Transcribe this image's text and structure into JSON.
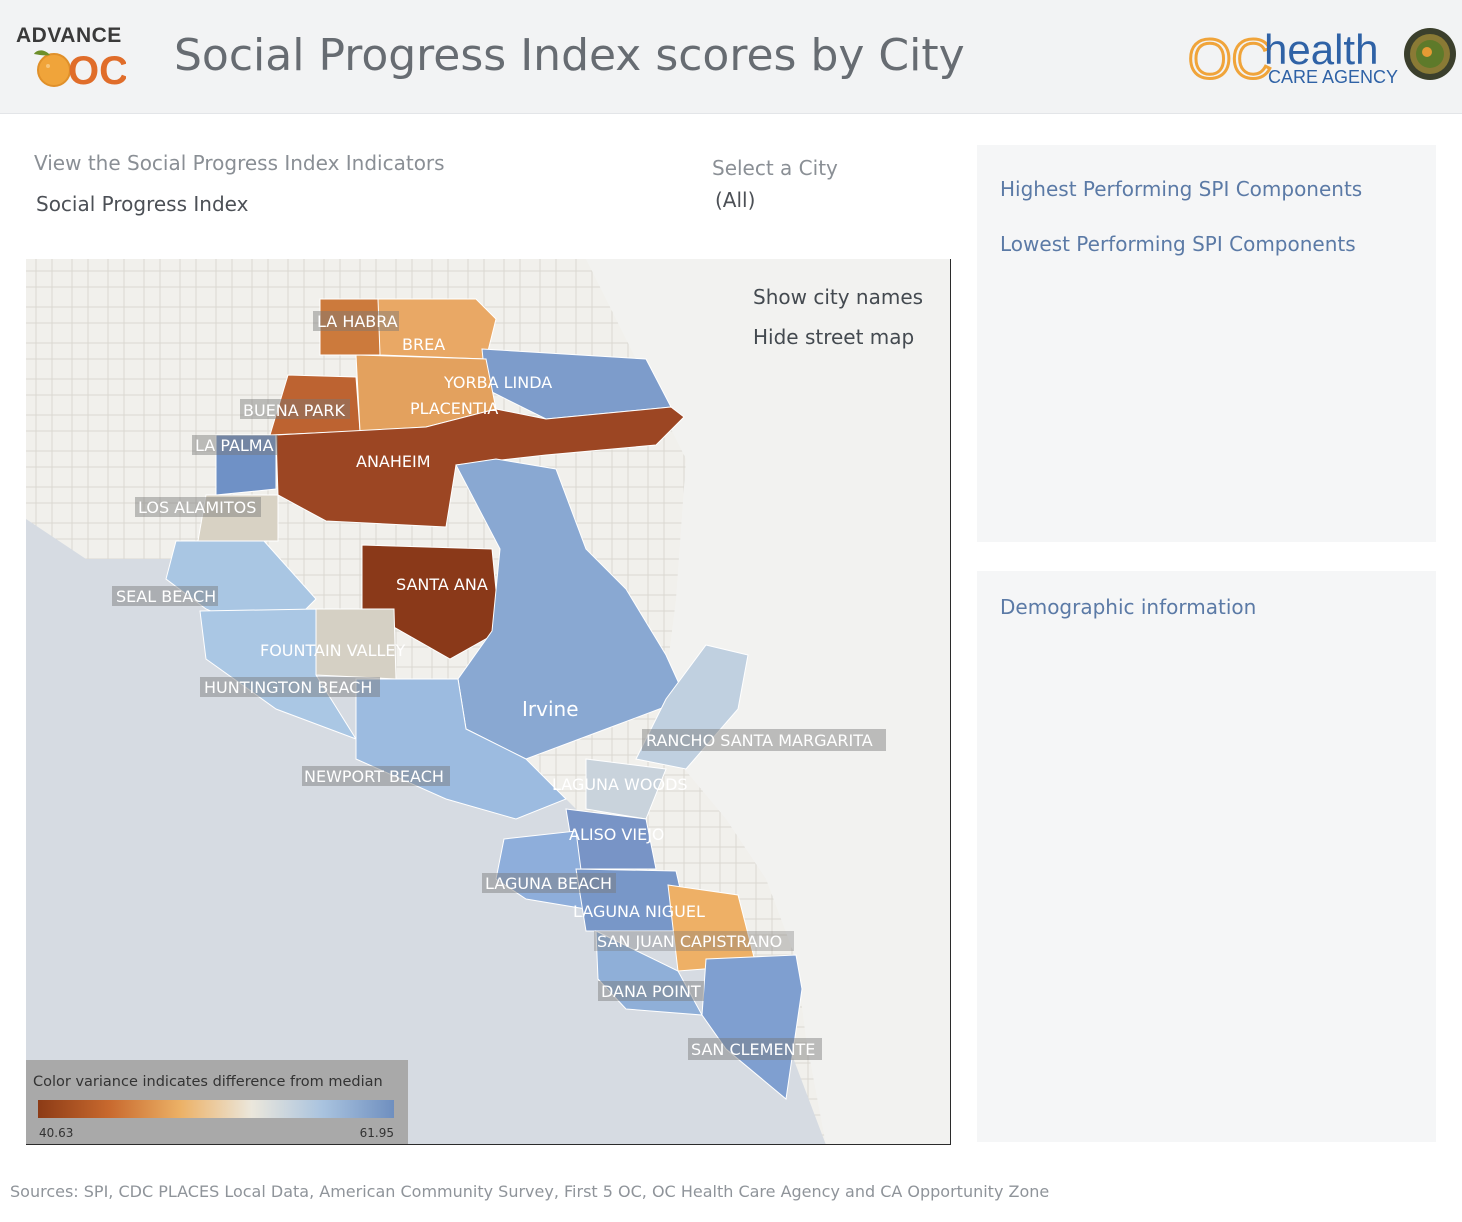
{
  "header": {
    "logo_left_text": "ADVANCE",
    "logo_left_mark": "OC",
    "title": "Social Progress Index scores by City",
    "logo_right_mark": "OC",
    "logo_right_word": "health",
    "logo_right_sub": "CARE AGENCY"
  },
  "filters": {
    "indicator_label": "View the Social Progress Index Indicators",
    "indicator_value": "Social Progress Index",
    "city_label": "Select a City",
    "city_value": "(All)"
  },
  "map": {
    "toggles": {
      "show_city_names": "Show city names",
      "hide_street_map": "Hide street map"
    },
    "cities": [
      {
        "name": "LA HABRA",
        "color": "#cc7a3c"
      },
      {
        "name": "BREA",
        "color": "#e9a865"
      },
      {
        "name": "YORBA LINDA",
        "color": "#7d9ccb"
      },
      {
        "name": "BUENA PARK",
        "color": "#bd6331"
      },
      {
        "name": "PLACENTIA",
        "color": "#e3a15e"
      },
      {
        "name": "LA PALMA",
        "color": "#6f91c6"
      },
      {
        "name": "ANAHEIM",
        "color": "#9c4623"
      },
      {
        "name": "LOS ALAMITOS",
        "color": "#d8d2c4"
      },
      {
        "name": "SEAL BEACH",
        "color": "#a9c6e3"
      },
      {
        "name": "SANTA ANA",
        "color": "#8a3919"
      },
      {
        "name": "FOUNTAIN VALLEY",
        "color": "#d5d0c4"
      },
      {
        "name": "HUNTINGTON BEACH",
        "color": "#aac7e4"
      },
      {
        "name": "Irvine",
        "color": "#89a8d2"
      },
      {
        "name": "RANCHO SANTA MARGARITA",
        "color": "#c0d0e0"
      },
      {
        "name": "NEWPORT BEACH",
        "color": "#9cbbe0"
      },
      {
        "name": "LAGUNA WOODS",
        "color": "#c9d3dc"
      },
      {
        "name": "ALISO VIEJO",
        "color": "#7894c6"
      },
      {
        "name": "LAGUNA BEACH",
        "color": "#8eaedb"
      },
      {
        "name": "LAGUNA NIGUEL",
        "color": "#7897c8"
      },
      {
        "name": "SAN JUAN CAPISTRANO",
        "color": "#eeb066"
      },
      {
        "name": "DANA POINT",
        "color": "#8fafd8"
      },
      {
        "name": "SAN CLEMENTE",
        "color": "#7f9fd0"
      }
    ],
    "legend": {
      "title": "Color variance indicates difference from median",
      "min": "40.63",
      "max": "61.95",
      "colors": [
        "#8c3b16",
        "#c8692e",
        "#ecb166",
        "#ebe7dc",
        "#a9c3df",
        "#6f8fbf"
      ]
    }
  },
  "panels": {
    "highest_link": "Highest Performing SPI Components",
    "lowest_link": "Lowest Performing SPI Components",
    "demographic_link": "Demographic information"
  },
  "footer": {
    "sources": "Sources: SPI, CDC PLACES Local Data, American Community Survey, First 5 OC, OC Health Care Agency and CA Opportunity Zone"
  }
}
